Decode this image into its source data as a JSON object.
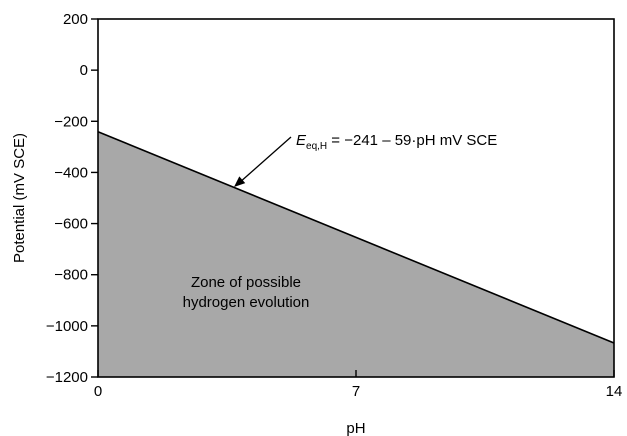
{
  "chart_data": {
    "type": "area",
    "xlabel": "pH",
    "ylabel": "Potential (mV SCE)",
    "xlim": [
      0,
      14
    ],
    "ylim": [
      -1200,
      200
    ],
    "xticks": [
      0,
      7,
      14
    ],
    "yticks": [
      200,
      0,
      -200,
      -400,
      -600,
      -800,
      -1000,
      -1200
    ],
    "ytick_labels": [
      "200",
      "0",
      "−200",
      "−400",
      "−600",
      "−800",
      "−1000",
      "−1200"
    ],
    "grid": false,
    "series": [
      {
        "x": [
          0,
          14
        ],
        "y": [
          -241,
          -1067
        ],
        "fill_below": true,
        "fill_color": "#a8a8a8",
        "line_color": "#000000"
      }
    ],
    "annotations": {
      "equation": {
        "symbol": "E",
        "subscript": "eq,H",
        "expression": " = −241 – 59·pH   mV SCE"
      },
      "zone_label_line1": "Zone of possible",
      "zone_label_line2": "hydrogen evolution"
    }
  }
}
